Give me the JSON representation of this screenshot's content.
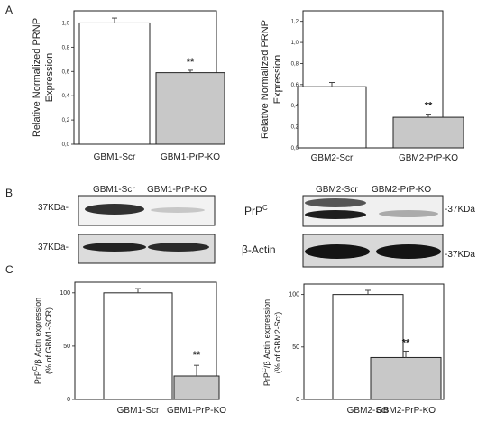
{
  "panels": {
    "a": "A",
    "b": "B",
    "c": "C"
  },
  "chart_data": [
    {
      "type": "bar",
      "categories": [
        "GBM1-Scr",
        "GBM1-PrP-KO"
      ],
      "values": [
        1.0,
        0.59
      ],
      "errors": [
        0.04,
        0.02
      ],
      "significance": [
        "",
        "**"
      ],
      "ylabel_line1": "Relative Normalized PRNP",
      "ylabel_line2": "Expression",
      "yticks": [
        "0,0",
        "0,2",
        "0,4",
        "0,6",
        "0,8",
        "1,0"
      ],
      "ylim": [
        0,
        1.1
      ],
      "colors": [
        "#ffffff",
        "#c8c8c8"
      ]
    },
    {
      "type": "bar",
      "categories": [
        "GBM2-Scr",
        "GBM2-PrP-KO"
      ],
      "values": [
        0.58,
        0.29
      ],
      "errors": [
        0.04,
        0.03
      ],
      "significance": [
        "",
        "**"
      ],
      "ylabel_line1": "Relative Normalized PRNP",
      "ylabel_line2": "Expression",
      "yticks": [
        "0,0",
        "0,2",
        "0,4",
        "0,6",
        "0,8",
        "1,0",
        "1,2"
      ],
      "ylim": [
        0,
        1.3
      ],
      "colors": [
        "#ffffff",
        "#c8c8c8"
      ]
    },
    {
      "type": "bar",
      "categories": [
        "GBM1-Scr",
        "GBM1-PrP-KO"
      ],
      "values": [
        100,
        22
      ],
      "errors": [
        4,
        10
      ],
      "significance": [
        "",
        "**"
      ],
      "ylabel_line1": "PrP",
      "ylabel_sup": "C",
      "ylabel_line1_rest": "/β Actin expression",
      "ylabel_line2": "(% of GBM1-SCR)",
      "yticks": [
        "0",
        "50",
        "100"
      ],
      "ylim": [
        0,
        110
      ],
      "colors": [
        "#ffffff",
        "#c8c8c8"
      ]
    },
    {
      "type": "bar",
      "categories": [
        "GBM2-Scr",
        "GBM2-PrP-KO"
      ],
      "values": [
        100,
        40
      ],
      "errors": [
        4,
        6
      ],
      "significance": [
        "",
        "**"
      ],
      "ylabel_line1": "PrP",
      "ylabel_sup": "C",
      "ylabel_line1_rest": "/β Actin expression",
      "ylabel_line2": "(% of GBM2-Scr)",
      "yticks": [
        "0",
        "50",
        "100"
      ],
      "ylim": [
        0,
        110
      ],
      "colors": [
        "#ffffff",
        "#c8c8c8"
      ]
    }
  ],
  "blots": {
    "left": {
      "lane1": "GBM1-Scr",
      "lane2": "GBM1-PrP-KO",
      "marker_top": "37KDa-",
      "marker_bottom": "37KDa-"
    },
    "right": {
      "lane1": "GBM2-Scr",
      "lane2": "GBM2-PrP-KO",
      "marker_top": "-37KDa",
      "marker_bottom": "-37KDa"
    },
    "label_prp": "PrP",
    "label_prp_sup": "C",
    "label_actin": "β-Actin"
  }
}
